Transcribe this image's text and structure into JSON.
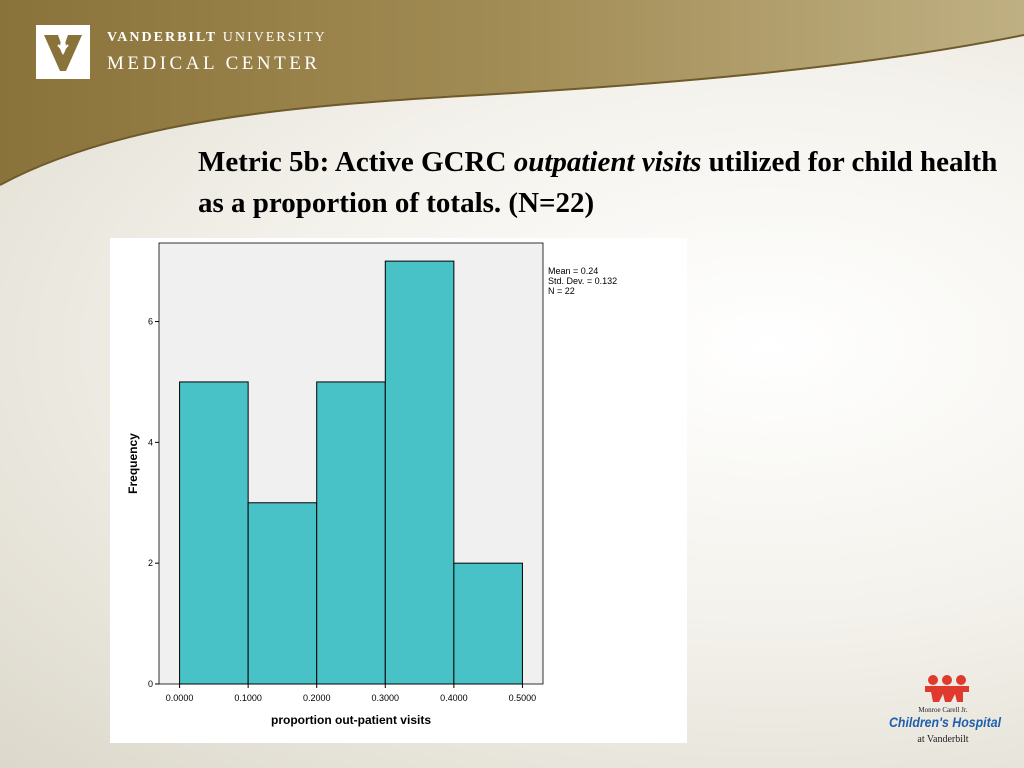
{
  "header": {
    "institution_line1_bold": "VANDERBILT",
    "institution_line1_rest": " UNIVERSITY",
    "institution_line2": "MEDICAL CENTER"
  },
  "slide": {
    "title_part1": "Metric 5b:  Active GCRC ",
    "title_italic": "outpatient visits",
    "title_part2": " utilized for child health as a proportion of totals. (N=22)"
  },
  "chart_data": {
    "type": "bar",
    "bins": [
      [
        0.0,
        0.1
      ],
      [
        0.1,
        0.2
      ],
      [
        0.2,
        0.3
      ],
      [
        0.3,
        0.4
      ],
      [
        0.4,
        0.5
      ]
    ],
    "values": [
      5,
      3,
      5,
      7,
      2
    ],
    "xticks": [
      "0.0000",
      "0.1000",
      "0.2000",
      "0.3000",
      "0.4000",
      "0.5000"
    ],
    "yticks": [
      "0",
      "2",
      "4",
      "6"
    ],
    "xlim": [
      -0.03,
      0.53
    ],
    "ylim": [
      0,
      7.3
    ],
    "xlabel": "proportion out-patient visits",
    "ylabel": "Frequency",
    "stats": {
      "mean": "Mean = 0.24",
      "std": "Std. Dev. = 0.132",
      "n": "N = 22"
    },
    "colors": {
      "bar": "#48c2c6",
      "plot_bg": "#f0f0f0",
      "edge": "#000000"
    }
  },
  "footer_logo": {
    "line1": "Monroe Carell Jr.",
    "line2": "Children's Hospital",
    "line3": "at Vanderbilt"
  }
}
